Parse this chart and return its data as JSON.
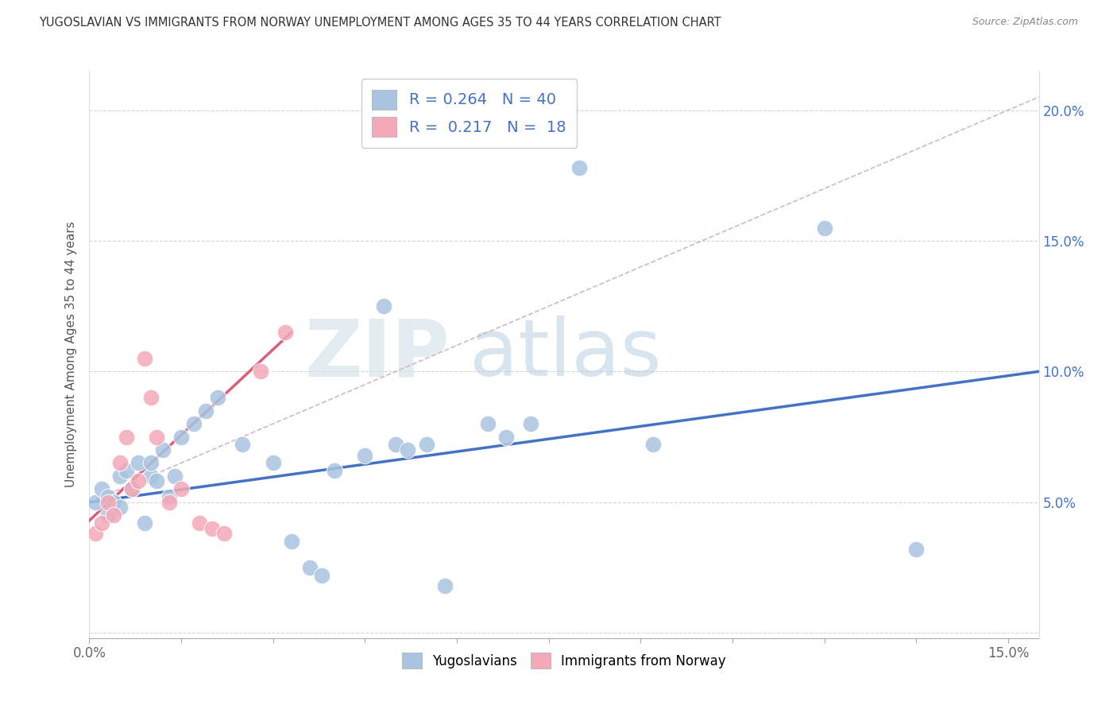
{
  "title": "YUGOSLAVIAN VS IMMIGRANTS FROM NORWAY UNEMPLOYMENT AMONG AGES 35 TO 44 YEARS CORRELATION CHART",
  "source": "Source: ZipAtlas.com",
  "ylabel": "Unemployment Among Ages 35 to 44 years",
  "xlim": [
    0.0,
    0.155
  ],
  "ylim": [
    -0.002,
    0.215
  ],
  "blue_R": "0.264",
  "blue_N": "40",
  "pink_R": "0.217",
  "pink_N": "18",
  "blue_scatter_color": "#a8c4e0",
  "pink_scatter_color": "#f4a8b8",
  "blue_line_color": "#4472c4",
  "pink_line_color": "#d9607a",
  "dashed_line_color": "#d0b0c0",
  "legend_labels": [
    "Yugoslavians",
    "Immigrants from Norway"
  ],
  "blue_x": [
    0.001,
    0.002,
    0.003,
    0.003,
    0.004,
    0.005,
    0.005,
    0.006,
    0.007,
    0.008,
    0.009,
    0.01,
    0.01,
    0.011,
    0.012,
    0.013,
    0.014,
    0.015,
    0.017,
    0.019,
    0.021,
    0.025,
    0.03,
    0.033,
    0.036,
    0.038,
    0.04,
    0.045,
    0.048,
    0.05,
    0.052,
    0.055,
    0.058,
    0.065,
    0.068,
    0.072,
    0.08,
    0.092,
    0.12,
    0.135
  ],
  "blue_y": [
    0.05,
    0.055,
    0.045,
    0.052,
    0.05,
    0.048,
    0.06,
    0.062,
    0.055,
    0.065,
    0.042,
    0.06,
    0.065,
    0.058,
    0.07,
    0.052,
    0.06,
    0.075,
    0.08,
    0.085,
    0.09,
    0.072,
    0.065,
    0.035,
    0.025,
    0.022,
    0.062,
    0.068,
    0.125,
    0.072,
    0.07,
    0.072,
    0.018,
    0.08,
    0.075,
    0.08,
    0.178,
    0.072,
    0.155,
    0.032
  ],
  "pink_x": [
    0.001,
    0.002,
    0.003,
    0.004,
    0.005,
    0.006,
    0.007,
    0.008,
    0.009,
    0.01,
    0.011,
    0.013,
    0.015,
    0.018,
    0.02,
    0.022,
    0.028,
    0.032
  ],
  "pink_y": [
    0.038,
    0.042,
    0.05,
    0.045,
    0.065,
    0.075,
    0.055,
    0.058,
    0.105,
    0.09,
    0.075,
    0.05,
    0.055,
    0.042,
    0.04,
    0.038,
    0.1,
    0.115
  ],
  "blue_trendline_x": [
    0.0,
    0.155
  ],
  "blue_trendline_y": [
    0.05,
    0.1
  ],
  "pink_trendline_x": [
    0.0,
    0.033
  ],
  "pink_trendline_y": [
    0.043,
    0.115
  ]
}
